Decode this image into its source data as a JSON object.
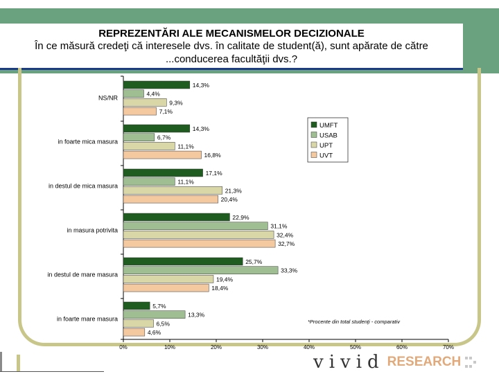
{
  "title": {
    "line1": "REPREZENTĂRI ALE MECANISMELOR DECIZIONALE",
    "line2": "În ce măsură credeţi că interesele dvs. în calitate de student(ă), sunt apărate de către",
    "line3": "...conducerea facultăţii dvs.?"
  },
  "footnote": "*Procente din total studenţi - comparativ",
  "logo": {
    "wordmark": "vivid",
    "suffix": "RESEARCH"
  },
  "colors": {
    "UMFT": "#1f5c1f",
    "USAB": "#9fbf93",
    "UPT": "#d9d6a8",
    "UVT": "#f5c9a0",
    "banner": "#6aa17f",
    "frame": "#c9c68a"
  },
  "chart_data": {
    "type": "bar",
    "orientation": "horizontal",
    "categories": [
      "NS/NR",
      "in foarte mica masura",
      "in destul de mica masura",
      "in masura potrivita",
      "in destul de mare masura",
      "in foarte mare masura"
    ],
    "series": [
      {
        "name": "UMFT",
        "values": [
          14.3,
          14.3,
          17.1,
          22.9,
          25.7,
          5.7
        ],
        "labels": [
          "14,3%",
          "14,3%",
          "17,1%",
          "22,9%",
          "25,7%",
          "5,7%"
        ]
      },
      {
        "name": "USAB",
        "values": [
          4.4,
          6.7,
          11.1,
          31.1,
          33.3,
          13.3
        ],
        "labels": [
          "4,4%",
          "6,7%",
          "11,1%",
          "31,1%",
          "33,3%",
          "13,3%"
        ]
      },
      {
        "name": "UPT",
        "values": [
          9.3,
          11.1,
          21.3,
          32.4,
          19.4,
          6.5
        ],
        "labels": [
          "9,3%",
          "11,1%",
          "21,3%",
          "32,4%",
          "19,4%",
          "6,5%"
        ]
      },
      {
        "name": "UVT",
        "values": [
          7.1,
          16.8,
          20.4,
          32.7,
          18.4,
          4.6
        ],
        "labels": [
          "7,1%",
          "16,8%",
          "20,4%",
          "32,7%",
          "18,4%",
          "4,6%"
        ]
      }
    ],
    "xlim": [
      0,
      70
    ],
    "xticks": [
      "0%",
      "10%",
      "20%",
      "30%",
      "40%",
      "50%",
      "60%",
      "70%"
    ],
    "legend": "right",
    "grid": false
  }
}
